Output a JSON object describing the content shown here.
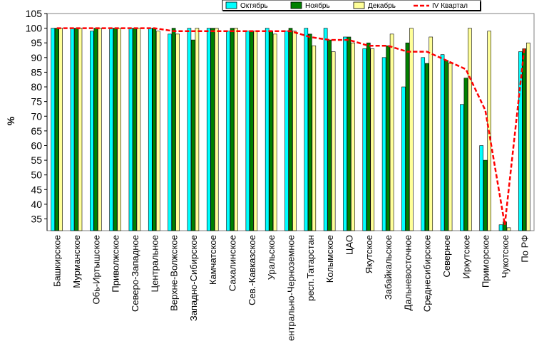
{
  "chart_data": {
    "type": "bar",
    "title": "",
    "xlabel": "",
    "ylabel": "%",
    "ylim": [
      31,
      105
    ],
    "yticks": [
      35,
      40,
      45,
      50,
      55,
      60,
      65,
      70,
      75,
      80,
      85,
      90,
      95,
      100,
      105
    ],
    "grid": false,
    "legend_position": "top-right",
    "categories": [
      "Башкирское",
      "Мурманское",
      "Обь-Иртышское",
      "Приволжское",
      "Северо-Западное",
      "Центральное",
      "Верхне-Волжское",
      "Западно-Сибирское",
      "Камчатское",
      "Сахалинское",
      "Сев.-Кавказское",
      "Уральское",
      "Центрально-Черноземное",
      "респ.Татарстан",
      "Колымское",
      "ЦАО",
      "Якутское",
      "Забайкальское",
      "Дальневосточное",
      "Среднесибирское",
      "Северное",
      "Иркутское",
      "Приморское",
      "Чукотское",
      "По РФ"
    ],
    "series": [
      {
        "name": "Октябрь",
        "type": "bar",
        "color": "#00ffff",
        "values": [
          100,
          100,
          99,
          100,
          100,
          100,
          98,
          100,
          100,
          99,
          99,
          100,
          99,
          100,
          100,
          97,
          93,
          90,
          80,
          90,
          91,
          74,
          60,
          33,
          92
        ]
      },
      {
        "name": "Ноябрь",
        "type": "bar",
        "color": "#008000",
        "values": [
          100,
          100,
          100,
          100,
          100,
          100,
          100,
          96,
          100,
          100,
          99,
          99,
          100,
          98,
          96,
          97,
          95,
          94,
          95,
          88,
          89,
          83,
          55,
          34,
          93
        ]
      },
      {
        "name": "Декабрь",
        "type": "bar",
        "color": "#ffff99",
        "values": [
          100,
          100,
          100,
          100,
          100,
          99,
          98,
          100,
          100,
          100,
          99,
          98,
          99,
          94,
          92,
          95,
          93,
          98,
          100,
          97,
          88,
          100,
          99,
          32,
          95
        ]
      },
      {
        "name": "IV Квартал",
        "type": "line",
        "color": "#ff0000",
        "values": [
          100,
          100,
          100,
          100,
          100,
          100,
          99,
          99,
          99,
          99,
          99,
          99,
          99,
          97,
          96,
          96,
          94,
          94,
          92,
          92,
          89,
          86,
          72,
          33,
          93
        ]
      }
    ]
  }
}
